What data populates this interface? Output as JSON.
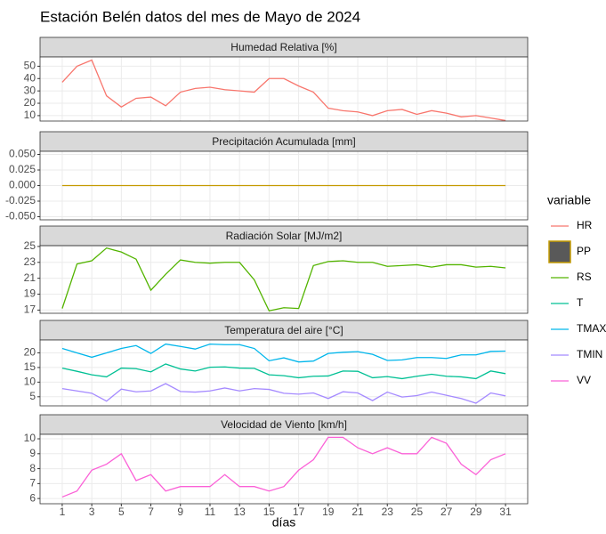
{
  "title": "Estación Belén datos del mes de Mayo de 2024",
  "legend_title": "variable",
  "x_axis": {
    "label": "días",
    "values": [
      1,
      2,
      3,
      4,
      5,
      6,
      7,
      8,
      9,
      10,
      11,
      12,
      13,
      14,
      15,
      16,
      17,
      18,
      19,
      20,
      21,
      22,
      23,
      24,
      25,
      26,
      27,
      28,
      29,
      30,
      31
    ],
    "xlim": [
      -0.5,
      32.5
    ],
    "xticks": [
      1,
      3,
      5,
      7,
      9,
      11,
      13,
      15,
      17,
      19,
      21,
      23,
      25,
      27,
      29,
      31
    ]
  },
  "chart_data": [
    {
      "type": "line",
      "title": "Humedad Relativa [%]",
      "ylim": [
        5.6,
        57.5
      ],
      "yticks": [
        10,
        20,
        30,
        40,
        50
      ],
      "grid": true,
      "series": [
        {
          "name": "HR",
          "color": "#F8766D",
          "values": [
            37,
            50,
            55,
            26,
            17,
            24,
            25,
            18,
            29,
            32,
            33,
            31,
            30,
            29,
            40,
            40,
            34,
            29,
            16,
            14,
            13,
            10,
            14,
            15,
            11,
            14,
            12,
            9,
            10,
            8,
            6
          ]
        }
      ]
    },
    {
      "type": "line",
      "title": "Precipitación Acumulada [mm]",
      "ylim": [
        -0.055,
        0.055
      ],
      "yticks": [
        {
          "value": -0.05,
          "label": "-0.050"
        },
        {
          "value": -0.025,
          "label": "-0.025"
        },
        {
          "value": 0,
          "label": "0.000"
        },
        {
          "value": 0.025,
          "label": "0.025"
        },
        {
          "value": 0.05,
          "label": "0.050"
        }
      ],
      "grid": true,
      "series": [
        {
          "name": "PP",
          "color": "#C49A00",
          "legend_key": "box",
          "values": [
            0,
            0,
            0,
            0,
            0,
            0,
            0,
            0,
            0,
            0,
            0,
            0,
            0,
            0,
            0,
            0,
            0,
            0,
            0,
            0,
            0,
            0,
            0,
            0,
            0,
            0,
            0,
            0,
            0,
            0,
            0
          ]
        }
      ]
    },
    {
      "type": "line",
      "title": "Radiación Solar [MJ/m2]",
      "ylim": [
        16.6,
        25.1
      ],
      "yticks": [
        17,
        19,
        21,
        23,
        25
      ],
      "grid": true,
      "series": [
        {
          "name": "RS",
          "color": "#53B400",
          "values": [
            17.2,
            22.8,
            23.2,
            24.8,
            24.3,
            23.4,
            19.5,
            21.5,
            23.3,
            23.0,
            22.9,
            23.0,
            23.0,
            20.8,
            16.9,
            17.3,
            17.2,
            22.6,
            23.1,
            23.2,
            23.0,
            23.0,
            22.5,
            22.6,
            22.7,
            22.4,
            22.7,
            22.7,
            22.4,
            22.5,
            22.3
          ]
        }
      ]
    },
    {
      "type": "line",
      "title": "Temperatura del aire [°C]",
      "ylim": [
        1.9,
        24.4
      ],
      "yticks": [
        5,
        10,
        15,
        20
      ],
      "grid": true,
      "series": [
        {
          "name": "T",
          "color": "#00C094",
          "values": [
            14.8,
            13.7,
            12.5,
            11.8,
            14.8,
            14.6,
            13.5,
            16.2,
            14.5,
            13.8,
            15.1,
            15.2,
            14.8,
            14.7,
            12.5,
            12.2,
            11.5,
            12,
            12.1,
            13.8,
            13.7,
            11.5,
            11.9,
            11.2,
            12,
            12.7,
            12,
            11.8,
            11.2,
            13.8,
            12.9
          ]
        },
        {
          "name": "TMAX",
          "color": "#00B6EB",
          "values": [
            21.5,
            20,
            18.5,
            20,
            21.5,
            22.5,
            19.8,
            23,
            22.2,
            21.3,
            23,
            22.8,
            22.8,
            21.5,
            17.3,
            18.3,
            16.9,
            17.2,
            19.8,
            20.2,
            20.4,
            19.5,
            17.4,
            17.6,
            18.4,
            18.4,
            18.1,
            19.3,
            19.3,
            20.5,
            20.6
          ]
        },
        {
          "name": "TMIN",
          "color": "#A58AFF",
          "values": [
            7.8,
            7,
            6.2,
            3.5,
            7.6,
            6.7,
            7,
            9.5,
            6.8,
            6.6,
            7,
            8,
            7,
            7.8,
            7.5,
            6.2,
            5.9,
            6.3,
            4.4,
            6.7,
            6.3,
            3.7,
            6.6,
            4.9,
            5.4,
            6.6,
            5.5,
            4.4,
            2.8,
            6.3,
            5.3
          ]
        }
      ]
    },
    {
      "type": "line",
      "title": "Velocidad de Viento [km/h]",
      "ylim": [
        5.65,
        10.3
      ],
      "yticks": [
        6,
        7,
        8,
        9,
        10
      ],
      "grid": true,
      "series": [
        {
          "name": "VV",
          "color": "#FB61D7",
          "values": [
            6.1,
            6.5,
            7.9,
            8.3,
            9,
            7.2,
            7.6,
            6.5,
            6.8,
            6.8,
            6.8,
            7.6,
            6.8,
            6.8,
            6.5,
            6.8,
            7.9,
            8.6,
            10.1,
            10.1,
            9.4,
            9,
            9.4,
            9,
            9,
            10.1,
            9.7,
            8.3,
            7.6,
            8.6,
            9
          ]
        }
      ]
    }
  ]
}
